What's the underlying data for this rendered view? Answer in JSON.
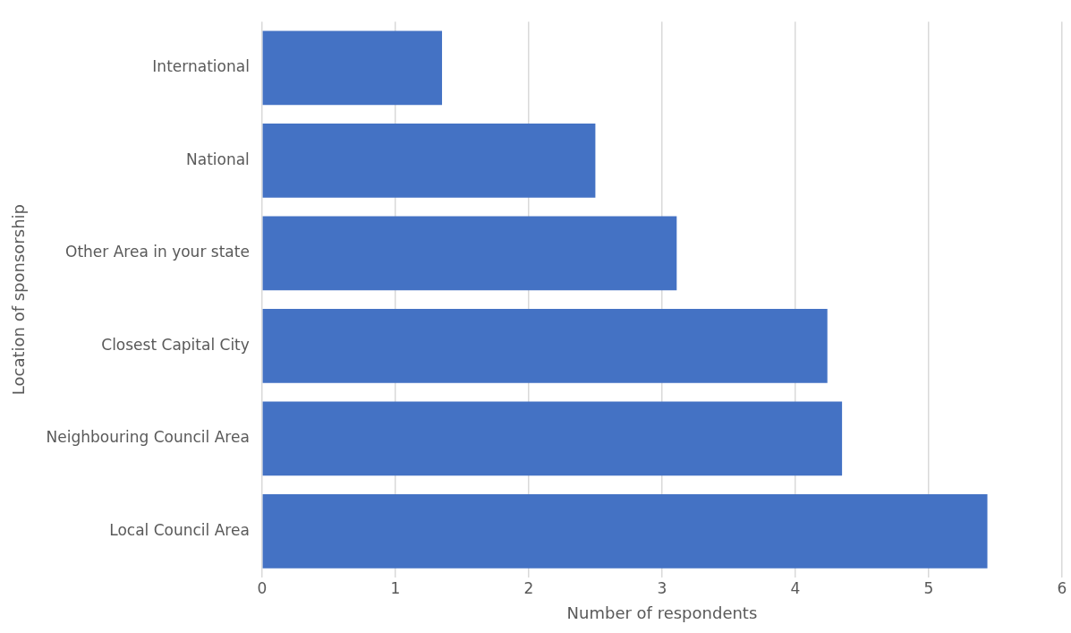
{
  "chart_data": {
    "type": "bar",
    "orientation": "horizontal",
    "xlabel": "Number of respondents",
    "ylabel": "Location of sponsorship",
    "categories": [
      "International",
      "National",
      "Other Area in your state",
      "Closest Capital City",
      "Neighbouring Council Area",
      "Local Council Area"
    ],
    "values": [
      1.35,
      2.5,
      3.11,
      4.24,
      4.35,
      5.44
    ],
    "color": "#4472c4",
    "xlim": [
      0,
      6
    ],
    "xticks": [
      0,
      1,
      2,
      3,
      4,
      5,
      6
    ],
    "grid": "x",
    "legend": false
  }
}
